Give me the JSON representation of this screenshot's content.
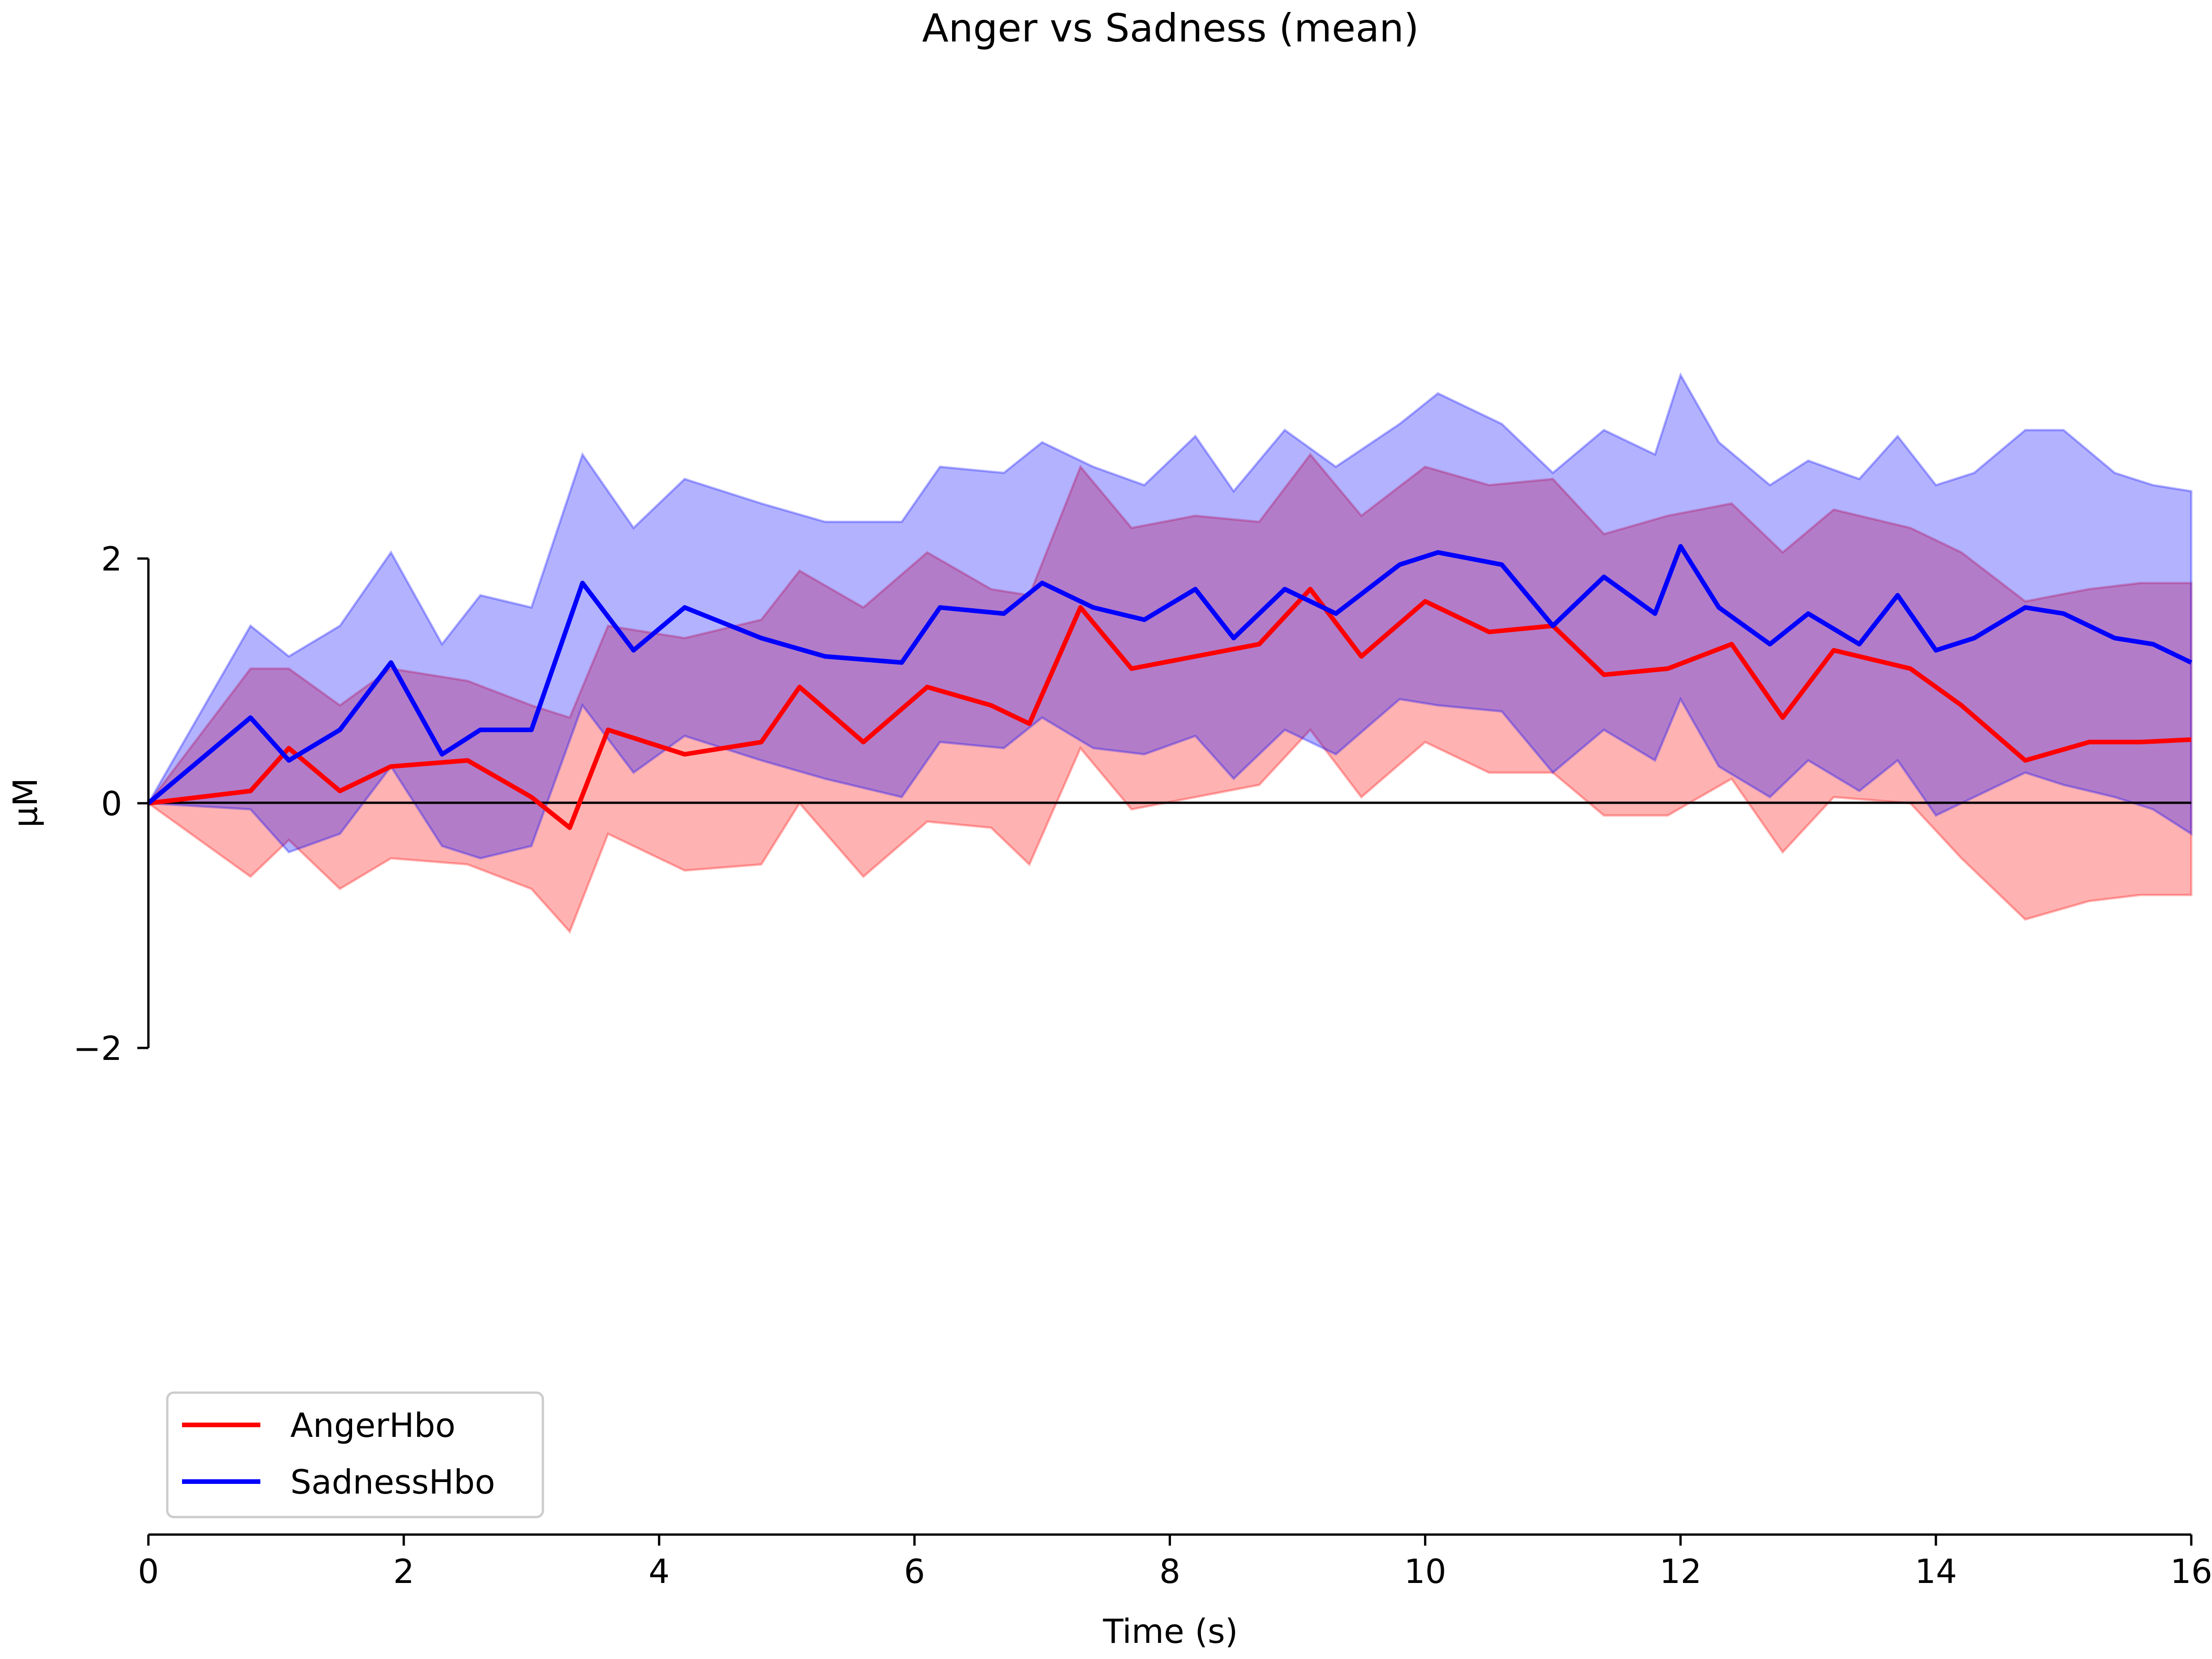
{
  "chart_data": {
    "type": "line",
    "title": "Anger vs Sadness (mean)",
    "xlabel": "Time (s)",
    "ylabel": "µM",
    "xlim": [
      0,
      16
    ],
    "ylim": [
      -2,
      2
    ],
    "x_ticks": [
      0,
      2,
      4,
      6,
      8,
      10,
      12,
      14,
      16
    ],
    "x_tick_labels": [
      "0",
      "2",
      "4",
      "6",
      "8",
      "10",
      "12",
      "14",
      "16"
    ],
    "y_ticks": [
      -2,
      0,
      2
    ],
    "y_tick_labels": [
      "−2",
      "0",
      "2"
    ],
    "zero_line": true,
    "grid": false,
    "legend_position": "lower-left",
    "series": [
      {
        "name": "AngerHbo",
        "color": "#ff0000",
        "x": [
          0,
          0.8,
          1.1,
          1.5,
          1.9,
          2.5,
          3.0,
          3.3,
          3.6,
          4.2,
          4.8,
          5.1,
          5.6,
          6.1,
          6.6,
          6.9,
          7.3,
          7.7,
          8.2,
          8.7,
          9.1,
          9.5,
          10.0,
          10.5,
          11.0,
          11.4,
          11.9,
          12.4,
          12.8,
          13.2,
          13.8,
          14.2,
          14.7,
          15.2,
          15.6,
          16.0
        ],
        "values": [
          0,
          0.1,
          0.45,
          0.1,
          0.3,
          0.35,
          0.05,
          -0.2,
          0.6,
          0.4,
          0.5,
          0.95,
          0.5,
          0.95,
          0.8,
          0.65,
          1.6,
          1.1,
          1.2,
          1.3,
          1.75,
          1.2,
          1.65,
          1.4,
          1.45,
          1.05,
          1.1,
          1.3,
          0.7,
          1.25,
          1.1,
          0.8,
          0.35,
          0.5,
          0.5,
          0.52
        ],
        "upper": [
          0,
          1.1,
          1.1,
          0.8,
          1.1,
          1.0,
          0.8,
          0.7,
          1.45,
          1.35,
          1.5,
          1.9,
          1.6,
          2.05,
          1.75,
          1.7,
          2.75,
          2.25,
          2.35,
          2.3,
          2.85,
          2.35,
          2.75,
          2.6,
          2.65,
          2.2,
          2.35,
          2.45,
          2.05,
          2.4,
          2.25,
          2.05,
          1.65,
          1.75,
          1.8,
          1.8
        ],
        "lower": [
          0,
          -0.6,
          -0.3,
          -0.7,
          -0.45,
          -0.5,
          -0.7,
          -1.05,
          -0.25,
          -0.55,
          -0.5,
          0.0,
          -0.6,
          -0.15,
          -0.2,
          -0.5,
          0.45,
          -0.05,
          0.05,
          0.15,
          0.6,
          0.05,
          0.5,
          0.25,
          0.25,
          -0.1,
          -0.1,
          0.2,
          -0.4,
          0.05,
          0.0,
          -0.45,
          -0.95,
          -0.8,
          -0.75,
          -0.75
        ]
      },
      {
        "name": "SadnessHbo",
        "color": "#0000ff",
        "x": [
          0,
          0.8,
          1.1,
          1.5,
          1.9,
          2.3,
          2.6,
          3.0,
          3.4,
          3.8,
          4.2,
          4.8,
          5.3,
          5.9,
          6.2,
          6.7,
          7.0,
          7.4,
          7.8,
          8.2,
          8.5,
          8.9,
          9.3,
          9.8,
          10.1,
          10.6,
          11.0,
          11.4,
          11.8,
          12.0,
          12.3,
          12.7,
          13.0,
          13.4,
          13.7,
          14.0,
          14.3,
          14.7,
          15.0,
          15.4,
          15.7,
          16.0
        ],
        "values": [
          0,
          0.7,
          0.35,
          0.6,
          1.15,
          0.4,
          0.6,
          0.6,
          1.8,
          1.25,
          1.6,
          1.35,
          1.2,
          1.15,
          1.6,
          1.55,
          1.8,
          1.6,
          1.5,
          1.75,
          1.35,
          1.75,
          1.55,
          1.95,
          2.05,
          1.95,
          1.45,
          1.85,
          1.55,
          2.1,
          1.6,
          1.3,
          1.55,
          1.3,
          1.7,
          1.25,
          1.35,
          1.6,
          1.55,
          1.35,
          1.3,
          1.15
        ],
        "upper": [
          0,
          1.45,
          1.2,
          1.45,
          2.05,
          1.3,
          1.7,
          1.6,
          2.85,
          2.25,
          2.65,
          2.45,
          2.3,
          2.3,
          2.75,
          2.7,
          2.95,
          2.75,
          2.6,
          3.0,
          2.55,
          3.05,
          2.75,
          3.1,
          3.35,
          3.1,
          2.7,
          3.05,
          2.85,
          3.5,
          2.95,
          2.6,
          2.8,
          2.65,
          3.0,
          2.6,
          2.7,
          3.05,
          3.05,
          2.7,
          2.6,
          2.55
        ],
        "lower": [
          0,
          -0.05,
          -0.4,
          -0.25,
          0.3,
          -0.35,
          -0.45,
          -0.35,
          0.8,
          0.25,
          0.55,
          0.35,
          0.2,
          0.05,
          0.5,
          0.45,
          0.7,
          0.45,
          0.4,
          0.55,
          0.2,
          0.6,
          0.4,
          0.85,
          0.8,
          0.75,
          0.25,
          0.6,
          0.35,
          0.85,
          0.3,
          0.05,
          0.35,
          0.1,
          0.35,
          -0.1,
          0.05,
          0.25,
          0.15,
          0.05,
          -0.05,
          -0.25
        ]
      }
    ]
  }
}
